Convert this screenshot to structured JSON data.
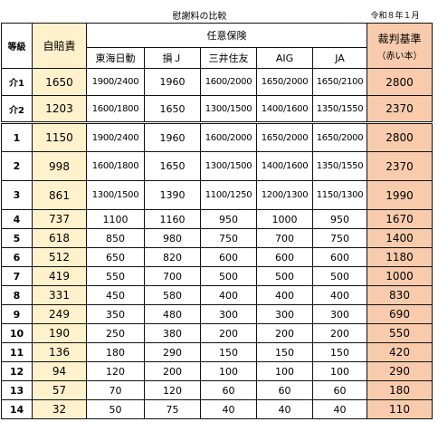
{
  "title": "慰謝料の比較",
  "date": "令和８年１月",
  "header": {
    "grade": "等級",
    "jibai": "自賠責",
    "nini": "任意保険",
    "saiban_line1": "裁判基準",
    "saiban_line2": "（赤い本）",
    "companies": [
      "東海日動",
      "損Ｊ",
      "三井住友",
      "AIG",
      "JA"
    ]
  },
  "rows": [
    {
      "grade": "介1",
      "jibai": "1650",
      "ins": [
        "1900/2400",
        "1960",
        "1600/2000",
        "1650/2000",
        "1650/2100"
      ],
      "saiban": "2800"
    },
    {
      "grade": "介2",
      "jibai": "1203",
      "ins": [
        "1600/1800",
        "1650",
        "1300/1500",
        "1400/1600",
        "1350/1550"
      ],
      "saiban": "2370"
    },
    {
      "grade": "1",
      "jibai": "1150",
      "ins": [
        "1900/2400",
        "1960",
        "1600/2000",
        "1650/2000",
        "1650/2000"
      ],
      "saiban": "2800"
    },
    {
      "grade": "2",
      "jibai": "998",
      "ins": [
        "1600/1800",
        "1650",
        "1300/1500",
        "1400/1600",
        "1350/1550"
      ],
      "saiban": "2370"
    },
    {
      "grade": "3",
      "jibai": "861",
      "ins": [
        "1300/1500",
        "1390",
        "1100/1250",
        "1200/1300",
        "1150/1300"
      ],
      "saiban": "1990"
    },
    {
      "grade": "4",
      "jibai": "737",
      "ins": [
        "1100",
        "1160",
        "950",
        "1000",
        "950"
      ],
      "saiban": "1670"
    },
    {
      "grade": "5",
      "jibai": "618",
      "ins": [
        "850",
        "980",
        "750",
        "700",
        "750"
      ],
      "saiban": "1400"
    },
    {
      "grade": "6",
      "jibai": "512",
      "ins": [
        "650",
        "820",
        "600",
        "600",
        "600"
      ],
      "saiban": "1180"
    },
    {
      "grade": "7",
      "jibai": "419",
      "ins": [
        "550",
        "700",
        "500",
        "500",
        "500"
      ],
      "saiban": "1000"
    },
    {
      "grade": "8",
      "jibai": "331",
      "ins": [
        "450",
        "580",
        "400",
        "400",
        "400"
      ],
      "saiban": "830"
    },
    {
      "grade": "9",
      "jibai": "249",
      "ins": [
        "350",
        "480",
        "300",
        "300",
        "300"
      ],
      "saiban": "690"
    },
    {
      "grade": "10",
      "jibai": "190",
      "ins": [
        "250",
        "380",
        "200",
        "200",
        "200"
      ],
      "saiban": "550"
    },
    {
      "grade": "11",
      "jibai": "136",
      "ins": [
        "180",
        "290",
        "150",
        "150",
        "150"
      ],
      "saiban": "420"
    },
    {
      "grade": "12",
      "jibai": "94",
      "ins": [
        "120",
        "200",
        "100",
        "100",
        "100"
      ],
      "saiban": "290"
    },
    {
      "grade": "13",
      "jibai": "57",
      "ins": [
        "70",
        "120",
        "60",
        "60",
        "60"
      ],
      "saiban": "180"
    },
    {
      "grade": "14",
      "jibai": "32",
      "ins": [
        "50",
        "75",
        "40",
        "40",
        "40"
      ],
      "saiban": "110"
    }
  ]
}
